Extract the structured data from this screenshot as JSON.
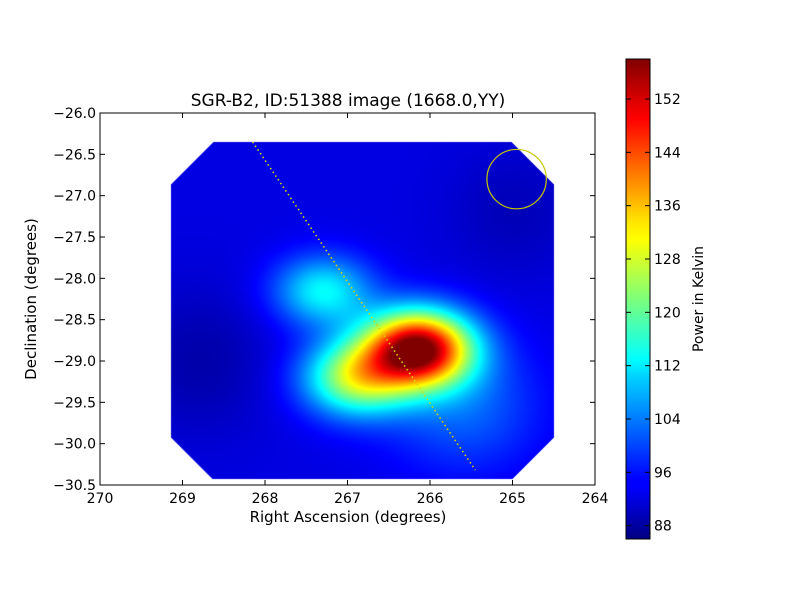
{
  "chart_data": {
    "type": "heatmap",
    "title": "SGR-B2, ID:51388 image (1668.0,YY)",
    "xlabel": "Right Ascension (degrees)",
    "ylabel": "Declination (degrees)",
    "xlim": [
      270,
      264
    ],
    "ylim": [
      -30.5,
      -26.0
    ],
    "x_ticks": [
      "270",
      "269",
      "268",
      "267",
      "266",
      "265",
      "264"
    ],
    "y_ticks": [
      "−26.0",
      "−26.5",
      "−27.0",
      "−27.5",
      "−28.0",
      "−28.5",
      "−29.0",
      "−29.5",
      "−30.0",
      "−30.5"
    ],
    "colorbar": {
      "label": "Power in Kelvin",
      "range": [
        86,
        158
      ],
      "ticks": [
        "88",
        "96",
        "104",
        "112",
        "120",
        "128",
        "136",
        "144",
        "152"
      ],
      "colormap": "jet"
    },
    "image_extent": {
      "ra": [
        269.15,
        264.5
      ],
      "dec": [
        -30.42,
        -26.35
      ]
    },
    "background_level": 93,
    "sources": [
      {
        "ra": 266.15,
        "dec": -28.85,
        "peak": 158
      },
      {
        "ra": 266.9,
        "dec": -29.2,
        "peak": 125
      },
      {
        "ra": 267.3,
        "dec": -28.15,
        "peak": 113
      },
      {
        "ra": 265.6,
        "dec": -29.55,
        "peak": 102
      }
    ],
    "galactic_plane_line": [
      {
        "ra": 268.15,
        "dec": -26.35
      },
      {
        "ra": 265.45,
        "dec": -30.32
      }
    ],
    "beam_circle": {
      "ra": 264.95,
      "dec": -26.8,
      "radius_deg": 0.36,
      "color": "#c8c800"
    },
    "line_color": "#d8d800"
  }
}
